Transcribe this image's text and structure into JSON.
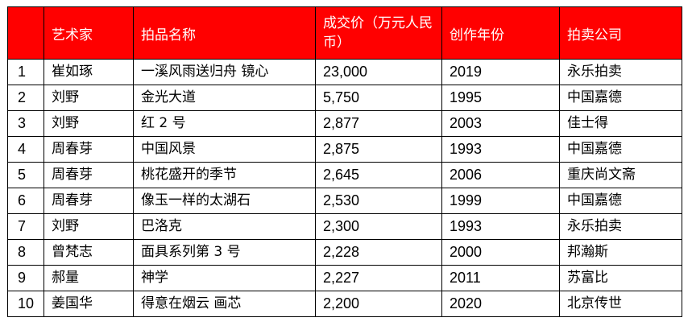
{
  "colors": {
    "header_background": "#ff0000",
    "header_text": "#ffffff",
    "border": "#000000"
  },
  "table": {
    "headers": [
      "",
      "艺术家",
      "拍品名称",
      "成交价（万元人民币）",
      "创作年份",
      "拍卖公司"
    ],
    "rows": [
      [
        "1",
        "崔如琢",
        "一溪风雨送归舟 镜心",
        "23,000",
        "2019",
        "永乐拍卖"
      ],
      [
        "2",
        "刘野",
        "金光大道",
        "5,750",
        "1995",
        "中国嘉德"
      ],
      [
        "3",
        "刘野",
        "红 2 号",
        "2,877",
        "2003",
        "佳士得"
      ],
      [
        "4",
        "周春芽",
        "中国风景",
        "2,875",
        "1993",
        "中国嘉德"
      ],
      [
        "5",
        "周春芽",
        "桃花盛开的季节",
        "2,645",
        "2006",
        "重庆尚文斋"
      ],
      [
        "6",
        "周春芽",
        "像玉一样的太湖石",
        "2,530",
        "1999",
        "中国嘉德"
      ],
      [
        "7",
        "刘野",
        "巴洛克",
        "2,300",
        "1993",
        "永乐拍卖"
      ],
      [
        "8",
        "曾梵志",
        "面具系列第 3 号",
        "2,228",
        "2000",
        "邦瀚斯"
      ],
      [
        "9",
        "郝量",
        "神学",
        "2,227",
        "2011",
        "苏富比"
      ],
      [
        "10",
        "姜国华",
        "得意在烟云 画芯",
        "2,200",
        "2020",
        "北京传世"
      ]
    ]
  }
}
